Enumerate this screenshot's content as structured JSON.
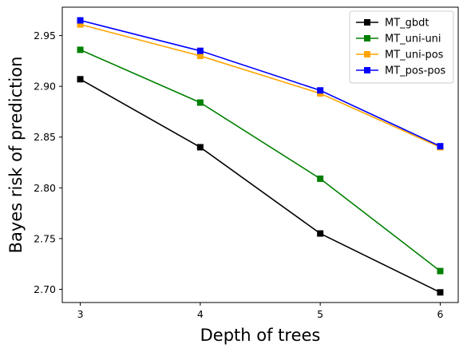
{
  "chart_data": {
    "type": "line",
    "xlabel": "Depth of trees",
    "ylabel": "Bayes risk of prediction",
    "x": [
      3,
      4,
      5,
      6
    ],
    "xticks": [
      "3",
      "4",
      "5",
      "6"
    ],
    "yticks": [
      "2.70",
      "2.75",
      "2.80",
      "2.85",
      "2.90",
      "2.95"
    ],
    "ylim": [
      2.687,
      2.978
    ],
    "xlim": [
      2.85,
      6.15
    ],
    "grid": false,
    "legend_position": "top-right",
    "marker": "square",
    "series": [
      {
        "name": "MT_gbdt",
        "color": "#000000",
        "values": [
          2.907,
          2.84,
          2.755,
          2.697
        ]
      },
      {
        "name": "MT_uni-uni",
        "color": "#008000",
        "values": [
          2.936,
          2.884,
          2.809,
          2.718
        ]
      },
      {
        "name": "MT_uni-pos",
        "color": "#FFA500",
        "values": [
          2.961,
          2.93,
          2.893,
          2.84
        ]
      },
      {
        "name": "MT_pos-pos",
        "color": "#0000FF",
        "values": [
          2.965,
          2.935,
          2.896,
          2.841
        ]
      }
    ]
  }
}
